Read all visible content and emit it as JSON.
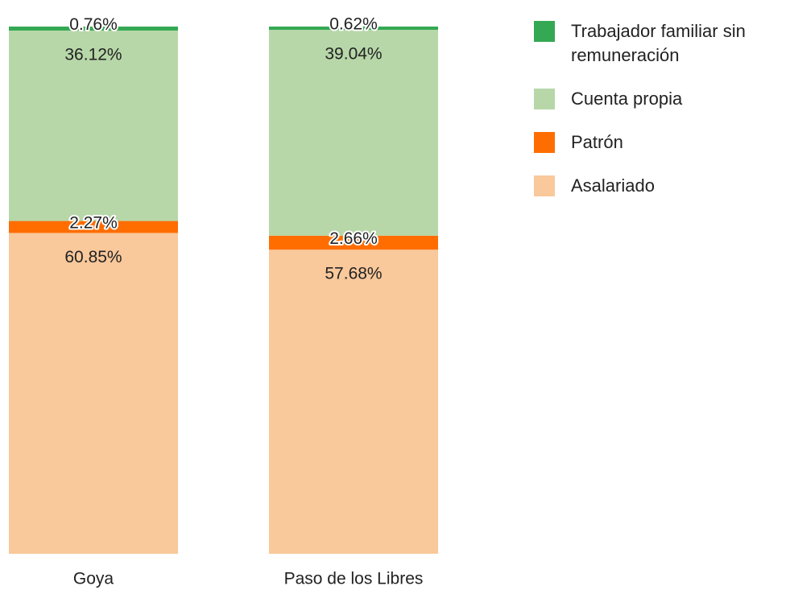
{
  "chart_data": {
    "type": "stacked_bar",
    "categories": [
      "Goya",
      "Paso de los Libres"
    ],
    "ylim": [
      0,
      100
    ],
    "series": [
      {
        "name": "Trabajador familiar sin remuneración",
        "color": "#34a853",
        "values": [
          0.76,
          0.62
        ],
        "value_labels": [
          "0.76%",
          "0.62%"
        ]
      },
      {
        "name": "Cuenta propia",
        "color": "#b7d7a8",
        "values": [
          36.12,
          39.04
        ],
        "value_labels": [
          "36.12%",
          "39.04%"
        ]
      },
      {
        "name": "Patrón",
        "color": "#ff6d01",
        "values": [
          2.27,
          2.66
        ],
        "value_labels": [
          "2.27%",
          "2.66%"
        ]
      },
      {
        "name": "Asalariado",
        "color": "#f9c89b",
        "values": [
          60.85,
          57.68
        ],
        "value_labels": [
          "60.85%",
          "57.68%"
        ]
      }
    ],
    "legend": "right"
  }
}
